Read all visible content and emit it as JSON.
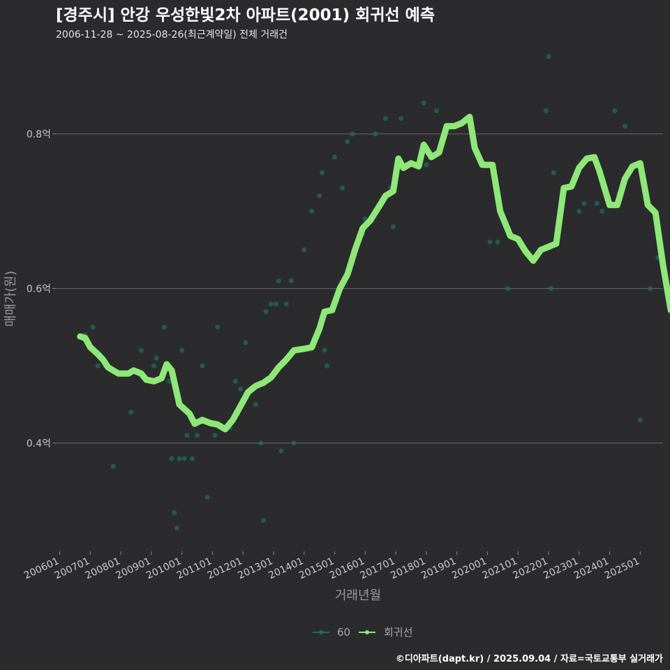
{
  "title": "[경주시] 안강 우성한빛2차 아파트(2001) 회귀선 예측",
  "subtitle": "2006-11-28 ~ 2025-08-26(최근계약일) 전체 거래건",
  "footer": "©디아파트(dapt.kr) / 2025.09.04 / 자료=국토교통부 실거래가",
  "colors": {
    "background": "#2b2b2d",
    "scatter": "#1f6f63",
    "regression": "#8ee878",
    "grid": "#6a6a6a",
    "text": "#c8c8c8"
  },
  "chart_data": {
    "type": "scatter",
    "title": "[경주시] 안강 우성한빛2차 아파트(2001) 회귀선 예측",
    "subtitle": "2006-11-28 ~ 2025-08-26(최근계약일) 전체 거래건",
    "xlabel": "거래년월",
    "ylabel": "매매가(원)",
    "x_ticks": [
      "200601",
      "200701",
      "200801",
      "200901",
      "201001",
      "201101",
      "201201",
      "201301",
      "201401",
      "201501",
      "201601",
      "201701",
      "201801",
      "201901",
      "202001",
      "202101",
      "202201",
      "202301",
      "202401",
      "202501"
    ],
    "y_ticks": [
      "0.4억",
      "0.6억",
      "0.8억"
    ],
    "y_tick_values": [
      0.4,
      0.6,
      0.8
    ],
    "xlim": [
      "2005-11-15",
      "2025-09-30"
    ],
    "ylim": [
      0.26,
      0.91
    ],
    "grid": true,
    "legend_position": "bottom",
    "series": [
      {
        "name": "60",
        "kind": "scatter",
        "color": "#1f6f63",
        "points": [
          [
            "2006-11",
            0.54
          ],
          [
            "2007-02",
            0.55
          ],
          [
            "2007-04",
            0.5
          ],
          [
            "2007-05",
            0.51
          ],
          [
            "2007-07",
            0.5
          ],
          [
            "2007-10",
            0.37
          ],
          [
            "2008-05",
            0.44
          ],
          [
            "2008-09",
            0.52
          ],
          [
            "2009-02",
            0.5
          ],
          [
            "2009-03",
            0.51
          ],
          [
            "2009-06",
            0.55
          ],
          [
            "2009-08",
            0.48
          ],
          [
            "2009-09",
            0.38
          ],
          [
            "2009-10",
            0.31
          ],
          [
            "2009-11",
            0.29
          ],
          [
            "2009-12",
            0.38
          ],
          [
            "2010-01",
            0.52
          ],
          [
            "2010-02",
            0.38
          ],
          [
            "2010-03",
            0.41
          ],
          [
            "2010-05",
            0.38
          ],
          [
            "2010-07",
            0.41
          ],
          [
            "2010-09",
            0.5
          ],
          [
            "2010-11",
            0.33
          ],
          [
            "2011-02",
            0.41
          ],
          [
            "2011-03",
            0.55
          ],
          [
            "2011-08",
            0.42
          ],
          [
            "2011-10",
            0.48
          ],
          [
            "2011-12",
            0.47
          ],
          [
            "2012-02",
            0.53
          ],
          [
            "2012-06",
            0.45
          ],
          [
            "2012-08",
            0.4
          ],
          [
            "2012-09",
            0.3
          ],
          [
            "2012-10",
            0.57
          ],
          [
            "2012-12",
            0.58
          ],
          [
            "2013-02",
            0.58
          ],
          [
            "2013-03",
            0.61
          ],
          [
            "2013-04",
            0.39
          ],
          [
            "2013-06",
            0.58
          ],
          [
            "2013-08",
            0.61
          ],
          [
            "2013-09",
            0.4
          ],
          [
            "2014-01",
            0.65
          ],
          [
            "2014-04",
            0.7
          ],
          [
            "2014-07",
            0.72
          ],
          [
            "2014-08",
            0.75
          ],
          [
            "2014-09",
            0.52
          ],
          [
            "2014-10",
            0.5
          ],
          [
            "2015-01",
            0.77
          ],
          [
            "2015-04",
            0.73
          ],
          [
            "2015-06",
            0.79
          ],
          [
            "2015-08",
            0.8
          ],
          [
            "2015-12",
            0.67
          ],
          [
            "2016-01",
            0.69
          ],
          [
            "2016-05",
            0.8
          ],
          [
            "2016-09",
            0.82
          ],
          [
            "2016-11",
            0.73
          ],
          [
            "2016-12",
            0.68
          ],
          [
            "2017-03",
            0.82
          ],
          [
            "2017-05",
            0.76
          ],
          [
            "2017-12",
            0.84
          ],
          [
            "2018-01",
            0.76
          ],
          [
            "2018-05",
            0.83
          ],
          [
            "2020-02",
            0.66
          ],
          [
            "2020-05",
            0.66
          ],
          [
            "2020-09",
            0.6
          ],
          [
            "2021-06",
            0.64
          ],
          [
            "2021-12",
            0.83
          ],
          [
            "2022-01",
            0.9
          ],
          [
            "2022-02",
            0.6
          ],
          [
            "2022-03",
            0.75
          ],
          [
            "2023-01",
            0.7
          ],
          [
            "2023-03",
            0.71
          ],
          [
            "2023-08",
            0.71
          ],
          [
            "2023-10",
            0.7
          ],
          [
            "2024-03",
            0.83
          ],
          [
            "2024-07",
            0.81
          ],
          [
            "2025-01",
            0.43
          ],
          [
            "2025-05",
            0.6
          ],
          [
            "2025-08",
            0.64
          ]
        ]
      },
      {
        "name": "회귀선",
        "kind": "line",
        "color": "#8ee878",
        "points": [
          [
            "2006-09",
            0.538
          ],
          [
            "2006-11",
            0.536
          ],
          [
            "2007-01",
            0.524
          ],
          [
            "2007-04",
            0.515
          ],
          [
            "2007-06",
            0.508
          ],
          [
            "2007-08",
            0.498
          ],
          [
            "2007-12",
            0.49
          ],
          [
            "2008-04",
            0.49
          ],
          [
            "2008-06",
            0.494
          ],
          [
            "2008-09",
            0.49
          ],
          [
            "2008-11",
            0.482
          ],
          [
            "2009-02",
            0.48
          ],
          [
            "2009-05",
            0.484
          ],
          [
            "2009-07",
            0.502
          ],
          [
            "2009-09",
            0.494
          ],
          [
            "2009-12",
            0.45
          ],
          [
            "2010-04",
            0.438
          ],
          [
            "2010-06",
            0.425
          ],
          [
            "2010-09",
            0.43
          ],
          [
            "2010-12",
            0.426
          ],
          [
            "2011-03",
            0.424
          ],
          [
            "2011-06",
            0.418
          ],
          [
            "2011-09",
            0.43
          ],
          [
            "2011-12",
            0.448
          ],
          [
            "2012-03",
            0.466
          ],
          [
            "2012-06",
            0.474
          ],
          [
            "2012-09",
            0.478
          ],
          [
            "2012-12",
            0.485
          ],
          [
            "2013-03",
            0.498
          ],
          [
            "2013-06",
            0.508
          ],
          [
            "2013-09",
            0.52
          ],
          [
            "2014-01",
            0.522
          ],
          [
            "2014-04",
            0.524
          ],
          [
            "2014-07",
            0.548
          ],
          [
            "2014-09",
            0.57
          ],
          [
            "2014-12",
            0.572
          ],
          [
            "2015-03",
            0.6
          ],
          [
            "2015-06",
            0.618
          ],
          [
            "2015-09",
            0.65
          ],
          [
            "2015-12",
            0.678
          ],
          [
            "2016-03",
            0.688
          ],
          [
            "2016-06",
            0.704
          ],
          [
            "2016-09",
            0.72
          ],
          [
            "2016-12",
            0.726
          ],
          [
            "2017-02",
            0.768
          ],
          [
            "2017-04",
            0.756
          ],
          [
            "2017-07",
            0.762
          ],
          [
            "2017-10",
            0.758
          ],
          [
            "2017-12",
            0.786
          ],
          [
            "2018-03",
            0.77
          ],
          [
            "2018-06",
            0.776
          ],
          [
            "2018-09",
            0.81
          ],
          [
            "2018-12",
            0.81
          ],
          [
            "2019-03",
            0.814
          ],
          [
            "2019-06",
            0.822
          ],
          [
            "2019-08",
            0.782
          ],
          [
            "2019-11",
            0.76
          ],
          [
            "2020-03",
            0.76
          ],
          [
            "2020-06",
            0.7
          ],
          [
            "2020-10",
            0.668
          ],
          [
            "2021-01",
            0.664
          ],
          [
            "2021-04",
            0.648
          ],
          [
            "2021-07",
            0.636
          ],
          [
            "2021-10",
            0.65
          ],
          [
            "2022-01",
            0.654
          ],
          [
            "2022-04",
            0.658
          ],
          [
            "2022-07",
            0.73
          ],
          [
            "2022-10",
            0.732
          ],
          [
            "2023-01",
            0.756
          ],
          [
            "2023-04",
            0.768
          ],
          [
            "2023-07",
            0.77
          ],
          [
            "2023-09",
            0.752
          ],
          [
            "2024-01",
            0.708
          ],
          [
            "2024-04",
            0.708
          ],
          [
            "2024-07",
            0.742
          ],
          [
            "2024-10",
            0.758
          ],
          [
            "2025-01",
            0.762
          ],
          [
            "2025-04",
            0.708
          ],
          [
            "2025-07",
            0.698
          ],
          [
            "2025-10",
            0.63
          ],
          [
            "2026-01",
            0.572
          ],
          [
            "2026-03",
            0.572
          ]
        ]
      }
    ]
  }
}
